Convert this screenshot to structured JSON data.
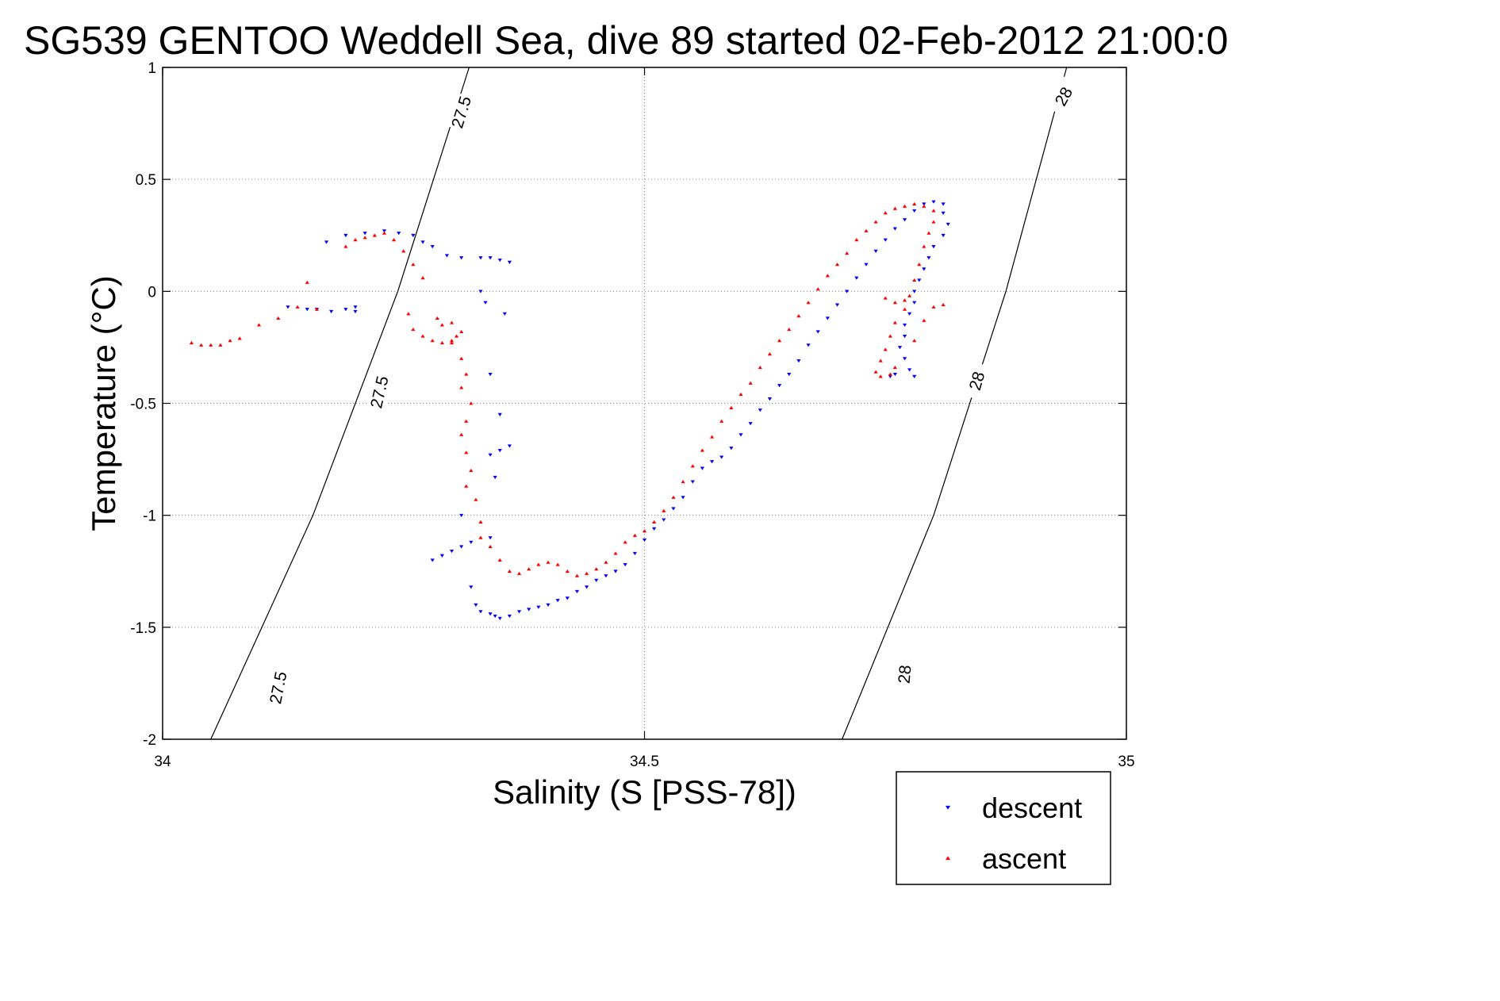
{
  "chart_data": {
    "type": "scatter",
    "title": "SG539 GENTOO Weddell Sea, dive 89 started 02-Feb-2012 21:00:0",
    "xlabel": "Salinity (S [PSS-78])",
    "ylabel": "Temperature (°C)",
    "xlim": [
      34,
      35
    ],
    "ylim": [
      -2,
      1
    ],
    "xticks": [
      "34",
      "34.5",
      "35"
    ],
    "yticks": [
      "-2",
      "-1.5",
      "-1",
      "-0.5",
      "0",
      "0.5",
      "1"
    ],
    "grid": true,
    "legend_position": "bottom-right",
    "series": [
      {
        "name": "descent",
        "color": "#0000ff",
        "marker": "triangle-down",
        "points": [
          [
            34.17,
            0.22
          ],
          [
            34.19,
            0.25
          ],
          [
            34.21,
            0.26
          ],
          [
            34.23,
            0.27
          ],
          [
            34.245,
            0.26
          ],
          [
            34.26,
            0.25
          ],
          [
            34.27,
            0.22
          ],
          [
            34.28,
            0.2
          ],
          [
            34.295,
            0.16
          ],
          [
            34.31,
            0.15
          ],
          [
            34.33,
            0.15
          ],
          [
            34.34,
            0.15
          ],
          [
            34.35,
            0.14
          ],
          [
            34.36,
            0.13
          ],
          [
            34.33,
            0.0
          ],
          [
            34.335,
            -0.05
          ],
          [
            34.355,
            -0.1
          ],
          [
            34.34,
            -0.37
          ],
          [
            34.35,
            -0.55
          ],
          [
            34.35,
            -0.71
          ],
          [
            34.34,
            -0.73
          ],
          [
            34.36,
            -0.69
          ],
          [
            34.345,
            -0.83
          ],
          [
            34.31,
            -1.0
          ],
          [
            34.34,
            -1.1
          ],
          [
            34.32,
            -1.12
          ],
          [
            34.31,
            -1.14
          ],
          [
            34.3,
            -1.16
          ],
          [
            34.29,
            -1.18
          ],
          [
            34.28,
            -1.2
          ],
          [
            34.32,
            -1.32
          ],
          [
            34.325,
            -1.4
          ],
          [
            34.33,
            -1.43
          ],
          [
            34.34,
            -1.44
          ],
          [
            34.345,
            -1.45
          ],
          [
            34.35,
            -1.46
          ],
          [
            34.36,
            -1.45
          ],
          [
            34.37,
            -1.43
          ],
          [
            34.38,
            -1.42
          ],
          [
            34.39,
            -1.41
          ],
          [
            34.4,
            -1.4
          ],
          [
            34.41,
            -1.38
          ],
          [
            34.42,
            -1.37
          ],
          [
            34.43,
            -1.34
          ],
          [
            34.44,
            -1.32
          ],
          [
            34.45,
            -1.29
          ],
          [
            34.46,
            -1.27
          ],
          [
            34.47,
            -1.25
          ],
          [
            34.48,
            -1.22
          ],
          [
            34.49,
            -1.17
          ],
          [
            34.5,
            -1.11
          ],
          [
            34.51,
            -1.06
          ],
          [
            34.52,
            -1.02
          ],
          [
            34.53,
            -0.97
          ],
          [
            34.54,
            -0.92
          ],
          [
            34.55,
            -0.85
          ],
          [
            34.56,
            -0.79
          ],
          [
            34.57,
            -0.76
          ],
          [
            34.58,
            -0.74
          ],
          [
            34.59,
            -0.7
          ],
          [
            34.6,
            -0.64
          ],
          [
            34.61,
            -0.59
          ],
          [
            34.62,
            -0.53
          ],
          [
            34.63,
            -0.48
          ],
          [
            34.64,
            -0.42
          ],
          [
            34.65,
            -0.37
          ],
          [
            34.66,
            -0.31
          ],
          [
            34.67,
            -0.24
          ],
          [
            34.68,
            -0.18
          ],
          [
            34.69,
            -0.12
          ],
          [
            34.7,
            -0.06
          ],
          [
            34.71,
            0.0
          ],
          [
            34.72,
            0.06
          ],
          [
            34.73,
            0.12
          ],
          [
            34.74,
            0.18
          ],
          [
            34.75,
            0.23
          ],
          [
            34.76,
            0.28
          ],
          [
            34.77,
            0.32
          ],
          [
            34.78,
            0.36
          ],
          [
            34.79,
            0.39
          ],
          [
            34.8,
            0.4
          ],
          [
            34.81,
            0.39
          ],
          [
            34.81,
            0.35
          ],
          [
            34.815,
            0.3
          ],
          [
            34.81,
            0.25
          ],
          [
            34.8,
            0.2
          ],
          [
            34.795,
            0.15
          ],
          [
            34.79,
            0.1
          ],
          [
            34.785,
            0.05
          ],
          [
            34.78,
            0.0
          ],
          [
            34.78,
            -0.05
          ],
          [
            34.775,
            -0.1
          ],
          [
            34.77,
            -0.15
          ],
          [
            34.77,
            -0.2
          ],
          [
            34.765,
            -0.25
          ],
          [
            34.77,
            -0.3
          ],
          [
            34.775,
            -0.35
          ],
          [
            34.78,
            -0.38
          ],
          [
            34.76,
            -0.37
          ],
          [
            34.755,
            -0.38
          ],
          [
            34.13,
            -0.07
          ],
          [
            34.15,
            -0.08
          ],
          [
            34.16,
            -0.08
          ],
          [
            34.175,
            -0.09
          ],
          [
            34.19,
            -0.08
          ],
          [
            34.2,
            -0.09
          ],
          [
            34.2,
            -0.07
          ]
        ]
      },
      {
        "name": "ascent",
        "color": "#ff0000",
        "marker": "triangle-up",
        "points": [
          [
            34.03,
            -0.23
          ],
          [
            34.04,
            -0.24
          ],
          [
            34.05,
            -0.24
          ],
          [
            34.06,
            -0.24
          ],
          [
            34.07,
            -0.22
          ],
          [
            34.08,
            -0.21
          ],
          [
            34.1,
            -0.15
          ],
          [
            34.12,
            -0.12
          ],
          [
            34.14,
            -0.07
          ],
          [
            34.15,
            0.04
          ],
          [
            34.16,
            -0.08
          ],
          [
            34.19,
            0.2
          ],
          [
            34.2,
            0.23
          ],
          [
            34.21,
            0.24
          ],
          [
            34.22,
            0.25
          ],
          [
            34.23,
            0.26
          ],
          [
            34.24,
            0.23
          ],
          [
            34.25,
            0.18
          ],
          [
            34.26,
            0.12
          ],
          [
            34.27,
            0.06
          ],
          [
            34.255,
            -0.1
          ],
          [
            34.26,
            -0.17
          ],
          [
            34.27,
            -0.2
          ],
          [
            34.28,
            -0.22
          ],
          [
            34.29,
            -0.23
          ],
          [
            34.3,
            -0.22
          ],
          [
            34.305,
            -0.2
          ],
          [
            34.29,
            -0.15
          ],
          [
            34.285,
            -0.12
          ],
          [
            34.3,
            -0.14
          ],
          [
            34.31,
            -0.18
          ],
          [
            34.3,
            -0.23
          ],
          [
            34.31,
            -0.3
          ],
          [
            34.315,
            -0.37
          ],
          [
            34.31,
            -0.43
          ],
          [
            34.32,
            -0.5
          ],
          [
            34.315,
            -0.58
          ],
          [
            34.31,
            -0.64
          ],
          [
            34.315,
            -0.72
          ],
          [
            34.32,
            -0.8
          ],
          [
            34.315,
            -0.87
          ],
          [
            34.325,
            -0.93
          ],
          [
            34.33,
            -1.03
          ],
          [
            34.33,
            -1.1
          ],
          [
            34.34,
            -1.14
          ],
          [
            34.35,
            -1.2
          ],
          [
            34.36,
            -1.25
          ],
          [
            34.37,
            -1.26
          ],
          [
            34.38,
            -1.24
          ],
          [
            34.39,
            -1.22
          ],
          [
            34.4,
            -1.21
          ],
          [
            34.41,
            -1.22
          ],
          [
            34.42,
            -1.25
          ],
          [
            34.43,
            -1.27
          ],
          [
            34.44,
            -1.26
          ],
          [
            34.45,
            -1.24
          ],
          [
            34.46,
            -1.21
          ],
          [
            34.47,
            -1.17
          ],
          [
            34.48,
            -1.12
          ],
          [
            34.49,
            -1.09
          ],
          [
            34.5,
            -1.07
          ],
          [
            34.51,
            -1.03
          ],
          [
            34.52,
            -0.98
          ],
          [
            34.53,
            -0.92
          ],
          [
            34.54,
            -0.85
          ],
          [
            34.55,
            -0.78
          ],
          [
            34.56,
            -0.71
          ],
          [
            34.57,
            -0.65
          ],
          [
            34.58,
            -0.58
          ],
          [
            34.59,
            -0.52
          ],
          [
            34.6,
            -0.46
          ],
          [
            34.61,
            -0.41
          ],
          [
            34.62,
            -0.34
          ],
          [
            34.63,
            -0.28
          ],
          [
            34.64,
            -0.22
          ],
          [
            34.65,
            -0.17
          ],
          [
            34.66,
            -0.11
          ],
          [
            34.67,
            -0.05
          ],
          [
            34.68,
            0.01
          ],
          [
            34.69,
            0.07
          ],
          [
            34.7,
            0.12
          ],
          [
            34.71,
            0.17
          ],
          [
            34.72,
            0.23
          ],
          [
            34.73,
            0.27
          ],
          [
            34.74,
            0.31
          ],
          [
            34.75,
            0.35
          ],
          [
            34.76,
            0.37
          ],
          [
            34.77,
            0.38
          ],
          [
            34.78,
            0.39
          ],
          [
            34.79,
            0.38
          ],
          [
            34.8,
            0.36
          ],
          [
            34.8,
            0.31
          ],
          [
            34.795,
            0.26
          ],
          [
            34.79,
            0.2
          ],
          [
            34.785,
            0.12
          ],
          [
            34.78,
            0.05
          ],
          [
            34.775,
            -0.02
          ],
          [
            34.77,
            -0.08
          ],
          [
            34.76,
            -0.14
          ],
          [
            34.755,
            -0.2
          ],
          [
            34.75,
            -0.26
          ],
          [
            34.745,
            -0.31
          ],
          [
            34.74,
            -0.36
          ],
          [
            34.745,
            -0.38
          ],
          [
            34.755,
            -0.37
          ],
          [
            34.76,
            -0.34
          ],
          [
            34.78,
            -0.22
          ],
          [
            34.79,
            -0.13
          ],
          [
            34.8,
            -0.07
          ],
          [
            34.81,
            -0.06
          ],
          [
            34.75,
            -0.03
          ],
          [
            34.76,
            -0.05
          ],
          [
            34.77,
            -0.04
          ]
        ]
      }
    ],
    "contours": [
      {
        "label": "27.5",
        "points": [
          [
            34.318,
            1.0
          ],
          [
            34.244,
            0.0
          ],
          [
            34.156,
            -1.0
          ],
          [
            34.05,
            -2.0
          ]
        ]
      },
      {
        "label": "28",
        "points": [
          [
            34.938,
            1.0
          ],
          [
            34.875,
            0.0
          ],
          [
            34.8,
            -1.0
          ],
          [
            34.705,
            -2.0
          ]
        ]
      }
    ],
    "contour_label_positions": [
      {
        "label": "27.5",
        "x": 34.31,
        "y": 0.8,
        "rot": -73
      },
      {
        "label": "27.5",
        "x": 34.225,
        "y": -0.45,
        "rot": -77
      },
      {
        "label": "27.5",
        "x": 34.12,
        "y": -1.77,
        "rot": -79
      },
      {
        "label": "28",
        "x": 34.935,
        "y": 0.87,
        "rot": -61
      },
      {
        "label": "28",
        "x": 34.845,
        "y": -0.4,
        "rot": -74
      },
      {
        "label": "28",
        "x": 34.77,
        "y": -1.71,
        "rot": -85
      }
    ]
  }
}
